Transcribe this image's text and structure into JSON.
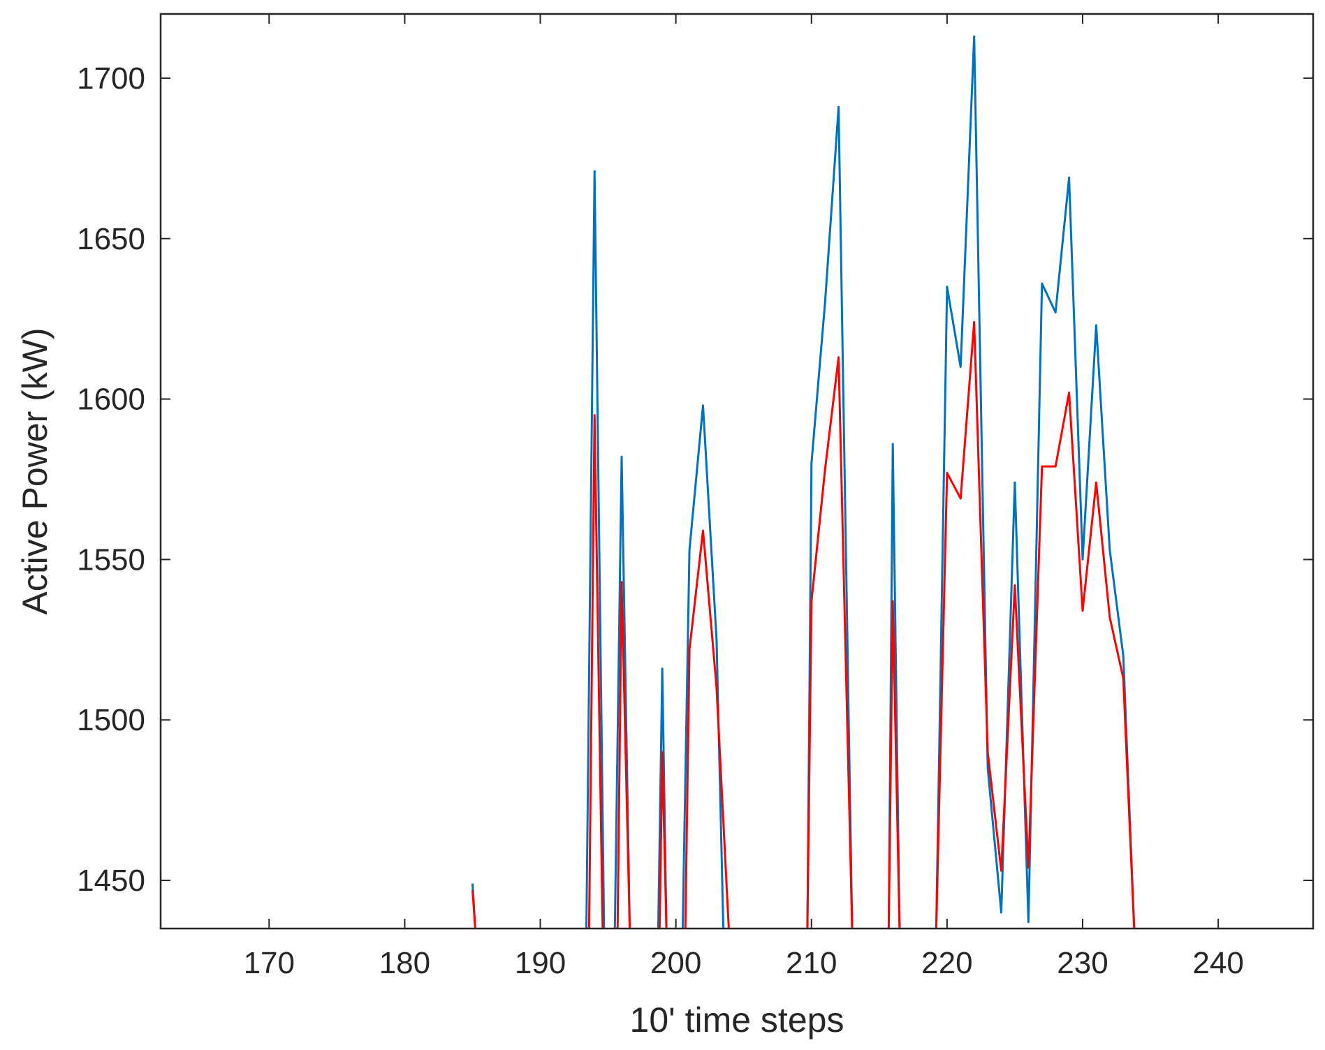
{
  "chart_data": {
    "type": "line",
    "title": "",
    "xlabel": "10' time steps",
    "ylabel": "Active Power (kW)",
    "xlim": [
      162,
      247
    ],
    "ylim": [
      1435,
      1720
    ],
    "xticks": [
      170,
      180,
      190,
      200,
      210,
      220,
      230,
      240
    ],
    "yticks": [
      1450,
      1500,
      1550,
      1600,
      1650,
      1700
    ],
    "grid": false,
    "legend": "none",
    "series": [
      {
        "color": "#0072BD",
        "segments": [
          [
            [
              185,
              1449
            ],
            [
              185.2,
              1435
            ]
          ],
          [
            [
              193.4,
              1435
            ],
            [
              194,
              1671
            ],
            [
              194.7,
              1435
            ]
          ],
          [
            [
              195.5,
              1435
            ],
            [
              196,
              1582
            ],
            [
              196.6,
              1435
            ]
          ],
          [
            [
              198.7,
              1435
            ],
            [
              199,
              1516
            ],
            [
              199.3,
              1435
            ]
          ],
          [
            [
              200.5,
              1435
            ],
            [
              201,
              1553
            ],
            [
              202,
              1598
            ],
            [
              203,
              1525
            ],
            [
              203.5,
              1435
            ]
          ],
          [
            [
              209.7,
              1435
            ],
            [
              210,
              1580
            ],
            [
              211,
              1630
            ],
            [
              212,
              1691
            ],
            [
              213,
              1435
            ]
          ],
          [
            [
              215.7,
              1435
            ],
            [
              216,
              1586
            ],
            [
              216.5,
              1435
            ]
          ],
          [
            [
              219.2,
              1435
            ],
            [
              220,
              1635
            ],
            [
              221,
              1610
            ],
            [
              222,
              1713
            ],
            [
              223,
              1485
            ],
            [
              224,
              1440
            ],
            [
              225,
              1574
            ],
            [
              226,
              1437
            ],
            [
              227,
              1636
            ],
            [
              228,
              1627
            ],
            [
              229,
              1669
            ],
            [
              230,
              1550
            ],
            [
              231,
              1623
            ],
            [
              232,
              1553
            ],
            [
              233,
              1520
            ],
            [
              233.8,
              1435
            ]
          ]
        ]
      },
      {
        "color": "#FF0000",
        "segments": [
          [
            [
              185,
              1447
            ],
            [
              185.2,
              1435
            ]
          ],
          [
            [
              193.6,
              1435
            ],
            [
              194,
              1595
            ],
            [
              194.6,
              1435
            ]
          ],
          [
            [
              195.7,
              1435
            ],
            [
              196,
              1543
            ],
            [
              196.6,
              1435
            ]
          ],
          [
            [
              198.8,
              1435
            ],
            [
              199,
              1490
            ],
            [
              199.3,
              1435
            ]
          ],
          [
            [
              200.7,
              1435
            ],
            [
              201,
              1522
            ],
            [
              202,
              1559
            ],
            [
              203,
              1510
            ],
            [
              203.9,
              1435
            ]
          ],
          [
            [
              209.7,
              1435
            ],
            [
              210,
              1537
            ],
            [
              211,
              1578
            ],
            [
              212,
              1613
            ],
            [
              213,
              1435
            ]
          ],
          [
            [
              215.7,
              1435
            ],
            [
              216,
              1537
            ],
            [
              216.5,
              1435
            ]
          ],
          [
            [
              219.2,
              1435
            ],
            [
              220,
              1577
            ],
            [
              221,
              1569
            ],
            [
              222,
              1624
            ],
            [
              223,
              1490
            ],
            [
              224,
              1453
            ],
            [
              225,
              1542
            ],
            [
              226,
              1454
            ],
            [
              227,
              1579
            ],
            [
              228,
              1579
            ],
            [
              229,
              1602
            ],
            [
              230,
              1534
            ],
            [
              231,
              1574
            ],
            [
              232,
              1532
            ],
            [
              233,
              1513
            ],
            [
              233.8,
              1435
            ]
          ]
        ]
      }
    ]
  }
}
